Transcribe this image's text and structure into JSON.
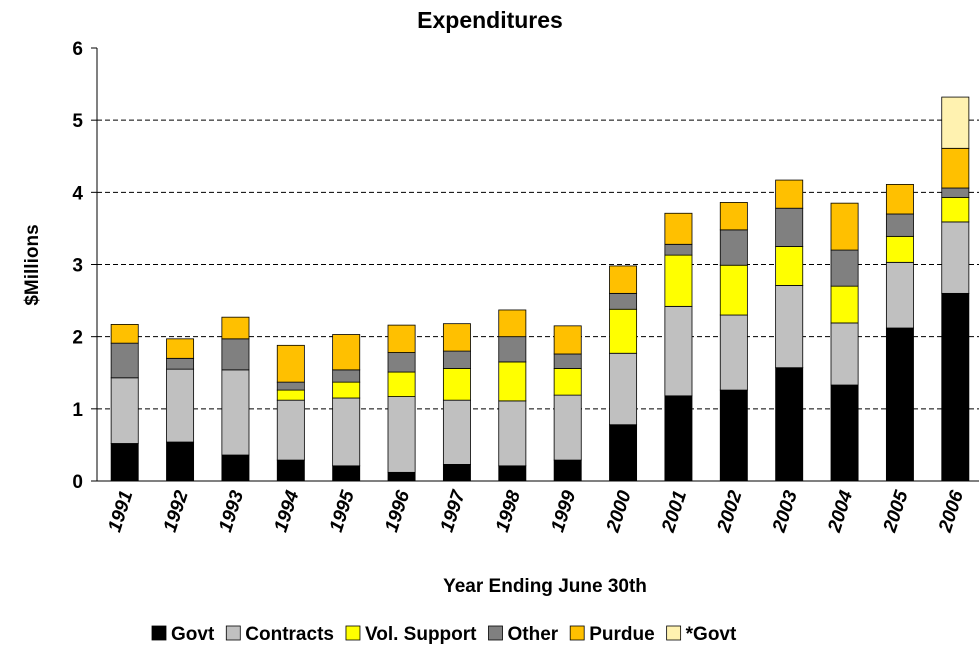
{
  "chart_data": {
    "type": "stacked_bar",
    "title": "Expenditures",
    "x_label": "Year Ending June 30th",
    "y_label": "$Millions",
    "categories": [
      "1991",
      "1992",
      "1993",
      "1994",
      "1995",
      "1996",
      "1997",
      "1998",
      "1999",
      "2000",
      "2001",
      "2002",
      "2003",
      "2004",
      "2005",
      "2006"
    ],
    "series": [
      {
        "name": "Govt",
        "color": "#000000",
        "values": [
          0.52,
          0.54,
          0.36,
          0.29,
          0.21,
          0.12,
          0.23,
          0.21,
          0.29,
          0.78,
          1.18,
          1.26,
          1.57,
          1.33,
          2.12,
          2.6
        ]
      },
      {
        "name": "Contracts",
        "color": "#c0c0c0",
        "values": [
          0.91,
          1.01,
          1.18,
          0.83,
          0.94,
          1.05,
          0.89,
          0.9,
          0.9,
          0.99,
          1.24,
          1.04,
          1.14,
          0.86,
          0.91,
          0.99
        ]
      },
      {
        "name": "Vol. Support",
        "color": "#ffff00",
        "values": [
          0,
          0,
          0,
          0.14,
          0.22,
          0.34,
          0.44,
          0.54,
          0.37,
          0.61,
          0.71,
          0.69,
          0.54,
          0.51,
          0.36,
          0.34
        ]
      },
      {
        "name": "Other",
        "color": "#808080",
        "values": [
          0.48,
          0.15,
          0.43,
          0.11,
          0.17,
          0.27,
          0.24,
          0.35,
          0.2,
          0.22,
          0.15,
          0.49,
          0.53,
          0.5,
          0.31,
          0.13
        ]
      },
      {
        "name": "Purdue",
        "color": "#ffc000",
        "values": [
          0.26,
          0.27,
          0.3,
          0.51,
          0.49,
          0.38,
          0.38,
          0.37,
          0.39,
          0.38,
          0.43,
          0.38,
          0.39,
          0.65,
          0.41,
          0.55
        ]
      },
      {
        "name": "*Govt",
        "color": "#fff2b0",
        "values": [
          0,
          0,
          0,
          0,
          0,
          0,
          0,
          0,
          0,
          0,
          0,
          0,
          0,
          0,
          0,
          0.71
        ]
      }
    ],
    "ylim": [
      0,
      6
    ],
    "yticks": [
      0,
      1,
      2,
      3,
      4,
      5,
      6
    ],
    "grid": true,
    "legend": "bottom"
  }
}
